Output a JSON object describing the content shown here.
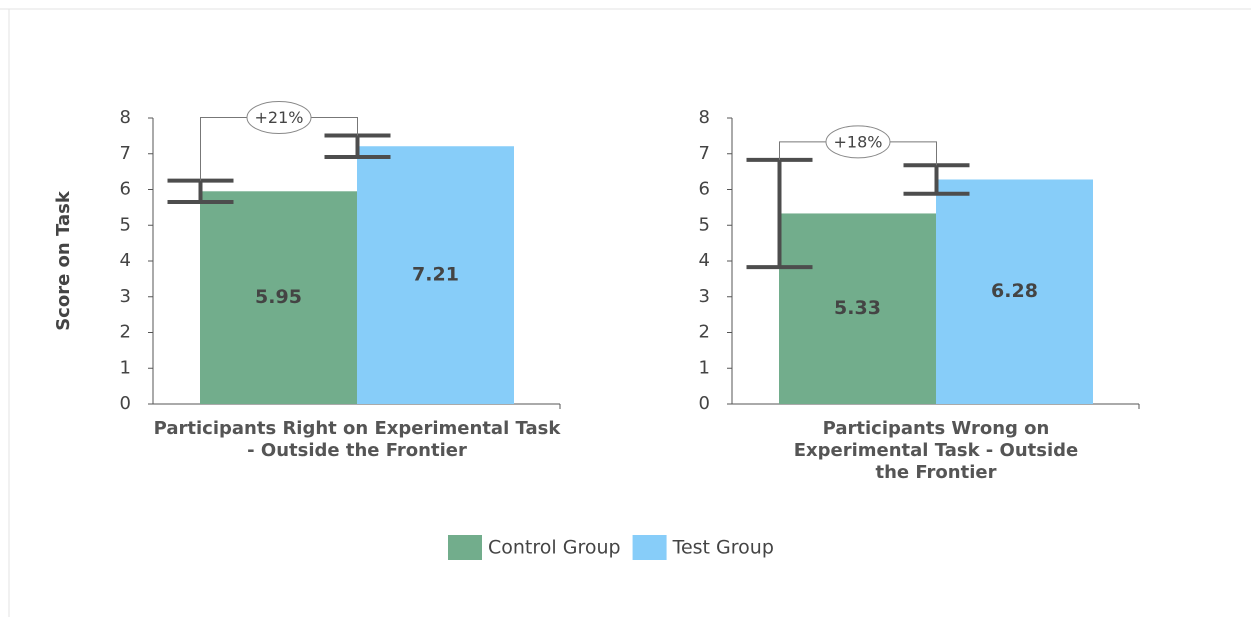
{
  "chart_data": [
    {
      "type": "bar",
      "y_label": "Score on Task",
      "categories": [
        "Participants Right on Experimental Task - Outside the Frontier"
      ],
      "series": [
        {
          "name": "Control Group",
          "color": "#72ad8c",
          "values": [
            5.95
          ],
          "errors": [
            0.3
          ]
        },
        {
          "name": "Test Group",
          "color": "#87cdf9",
          "values": [
            7.21
          ],
          "errors": [
            0.3
          ]
        }
      ],
      "annotation": "+21%",
      "ylim": [
        0,
        8
      ],
      "yticks": [
        0,
        1,
        2,
        3,
        4,
        5,
        6,
        7,
        8
      ]
    },
    {
      "type": "bar",
      "categories": [
        "Participants Wrong on Experimental Task - Outside the Frontier"
      ],
      "series": [
        {
          "name": "Control Group",
          "color": "#72ad8c",
          "values": [
            5.33
          ],
          "errors": [
            1.5
          ]
        },
        {
          "name": "Test Group",
          "color": "#87cdf9",
          "values": [
            6.28
          ],
          "errors": [
            0.4
          ]
        }
      ],
      "annotation": "+18%",
      "ylim": [
        0,
        8
      ],
      "yticks": [
        0,
        1,
        2,
        3,
        4,
        5,
        6,
        7,
        8
      ]
    }
  ]
}
